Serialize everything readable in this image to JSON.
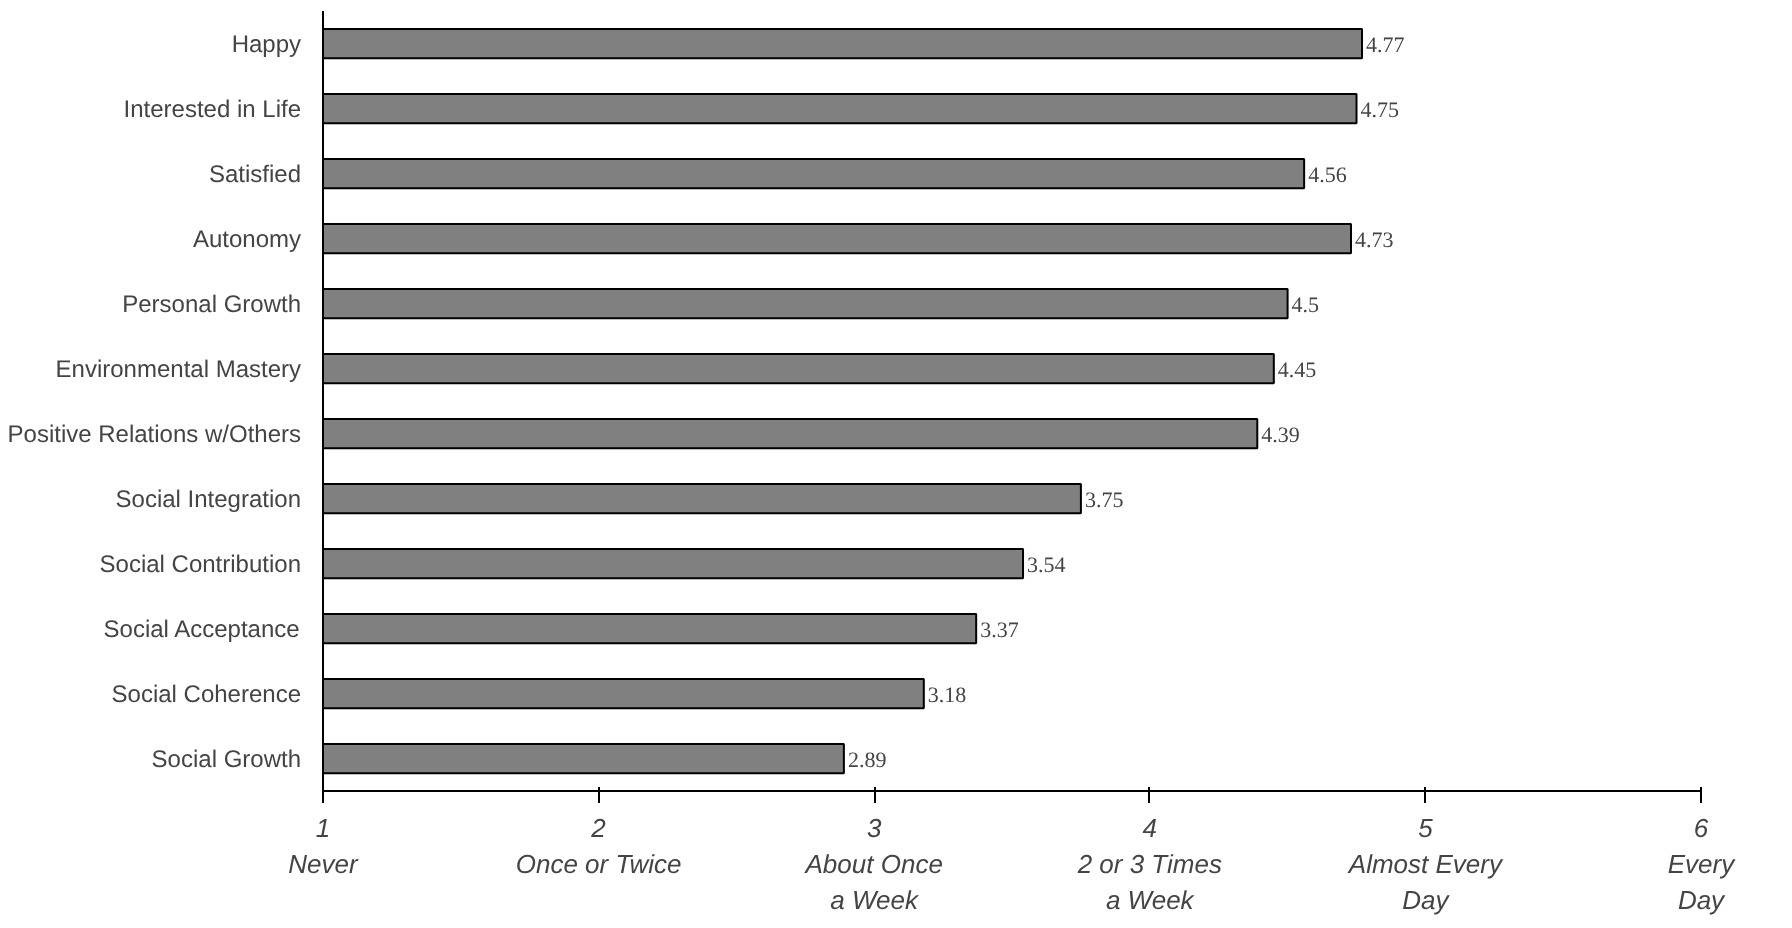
{
  "chart_data": {
    "type": "bar",
    "orientation": "horizontal",
    "categories": [
      "Happy",
      "Interested in Life",
      "Satisfied",
      "Autonomy",
      "Personal Growth",
      "Environmental Mastery",
      "Positive Relations w/Others",
      "Social Integration",
      "Social Contribution",
      "Social Acceptance",
      "Social Coherence",
      "Social Growth"
    ],
    "values": [
      4.77,
      4.75,
      4.56,
      4.73,
      4.5,
      4.45,
      4.39,
      3.75,
      3.54,
      3.37,
      3.18,
      2.89
    ],
    "color": "#808080",
    "data_labels": true,
    "grid": false,
    "xlim": [
      1,
      6
    ],
    "xticks": [
      {
        "value": 1,
        "label": "1\nNever"
      },
      {
        "value": 2,
        "label": "2\nOnce or Twice"
      },
      {
        "value": 3,
        "label": "3\nAbout Once\na Week"
      },
      {
        "value": 4,
        "label": "4\n2 or 3 Times\na Week"
      },
      {
        "value": 5,
        "label": "5\nAlmost Every\nDay"
      },
      {
        "value": 6,
        "label": "6\nEvery\nDay"
      }
    ]
  }
}
